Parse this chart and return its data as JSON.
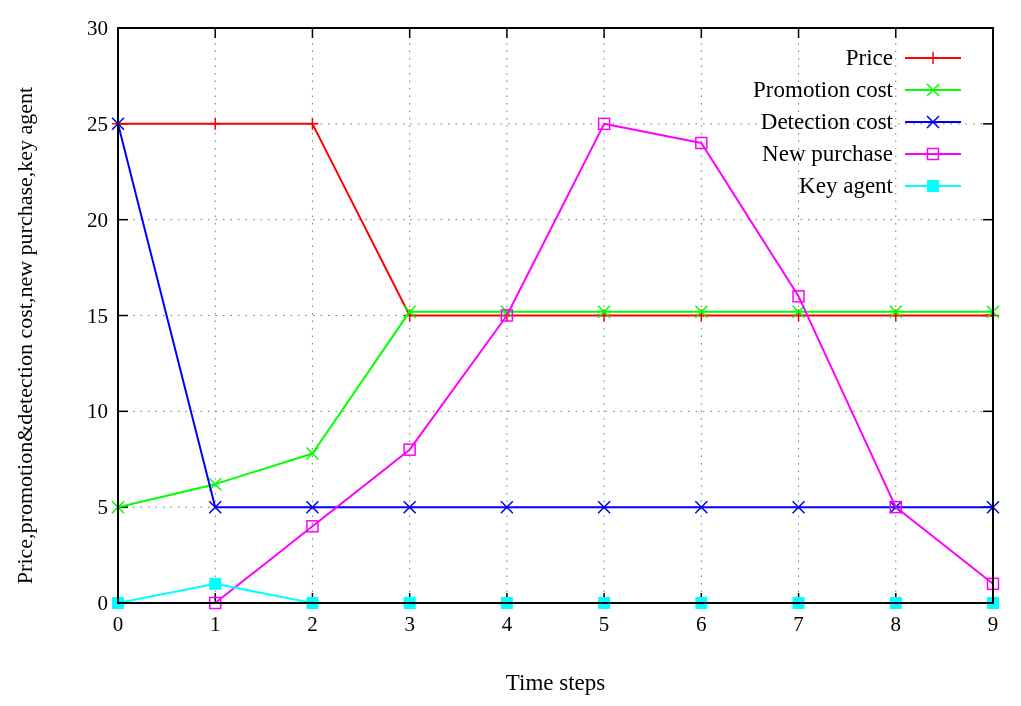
{
  "chart_data": {
    "type": "line",
    "xlabel": "Time steps",
    "ylabel": "Price,promotion&detection cost,new purchase,key agent",
    "x": [
      0,
      1,
      2,
      3,
      4,
      5,
      6,
      7,
      8,
      9
    ],
    "xlim": [
      0,
      9
    ],
    "xticks": [
      0,
      1,
      2,
      3,
      4,
      5,
      6,
      7,
      8,
      9
    ],
    "ylim": [
      0,
      30
    ],
    "yticks": [
      0,
      5,
      10,
      15,
      20,
      25,
      30
    ],
    "grid": true,
    "legend": "top right",
    "series": [
      {
        "name": "Price",
        "color": "#ff0000",
        "marker": "plus",
        "values": [
          25,
          25,
          25,
          15,
          15,
          15,
          15,
          15,
          15,
          15
        ]
      },
      {
        "name": "Promotion cost",
        "color": "#00ff00",
        "marker": "cross",
        "values": [
          5,
          6.2,
          7.8,
          15.2,
          15.2,
          15.2,
          15.2,
          15.2,
          15.2,
          15.2
        ]
      },
      {
        "name": "Detection cost",
        "color": "#0000ff",
        "marker": "cross",
        "values": [
          25,
          5,
          5,
          5,
          5,
          5,
          5,
          5,
          5,
          5
        ]
      },
      {
        "name": "New purchase",
        "color": "#ff00ff",
        "marker": "square-open",
        "values": [
          null,
          0,
          4,
          8,
          15,
          25,
          24,
          16,
          5,
          1
        ]
      },
      {
        "name": "Key agent",
        "color": "#00ffff",
        "marker": "square",
        "values": [
          0,
          1,
          0,
          0,
          0,
          0,
          0,
          0,
          0,
          0
        ]
      }
    ]
  }
}
